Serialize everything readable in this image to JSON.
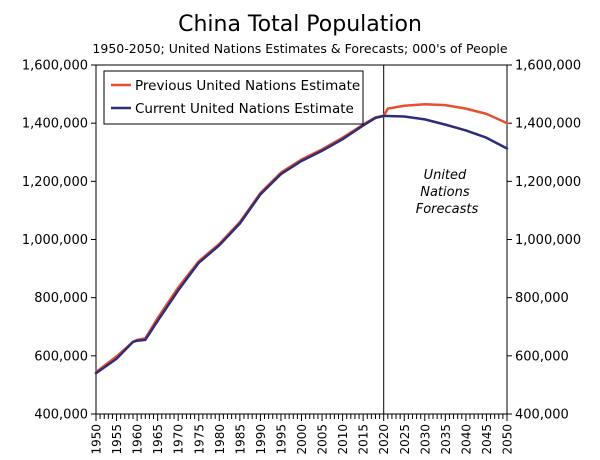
{
  "chart_data": {
    "type": "line",
    "title": "China Total Population",
    "subtitle": "1950-2050; United Nations Estimates & Forecasts; 000's of People",
    "xlabel": "",
    "ylabel": "",
    "xlim": [
      1950,
      2050
    ],
    "ylim": [
      400000,
      1600000
    ],
    "y_ticks": [
      400000,
      600000,
      800000,
      1000000,
      1200000,
      1400000,
      1600000
    ],
    "y_tick_labels": [
      "400,000",
      "600,000",
      "800,000",
      "1,000,000",
      "1,200,000",
      "1,400,000",
      "1,600,000"
    ],
    "x_tick_labels": [
      "1950",
      "1955",
      "1960",
      "1965",
      "1970",
      "1975",
      "1980",
      "1985",
      "1990",
      "1995",
      "2000",
      "2005",
      "2010",
      "2015",
      "2020",
      "2025",
      "2030",
      "2035",
      "2040",
      "2045",
      "2050"
    ],
    "x_ticks": [
      1950,
      1955,
      1960,
      1965,
      1970,
      1975,
      1980,
      1985,
      1990,
      1995,
      2000,
      2005,
      2010,
      2015,
      2020,
      2025,
      2030,
      2035,
      2040,
      2045,
      2050
    ],
    "grid": false,
    "legend_position": "top-left",
    "divider_year": 2020,
    "annotation": "United Nations Forecasts",
    "annotation_lines": [
      "United",
      "Nations",
      "Forecasts"
    ],
    "series": [
      {
        "name": "Previous United Nations Estimate",
        "color": "#e8502d",
        "x": [
          1950,
          1955,
          1959,
          1960,
          1962,
          1965,
          1970,
          1975,
          1980,
          1985,
          1990,
          1995,
          2000,
          2005,
          2010,
          2015,
          2018,
          2020,
          2021,
          2025,
          2030,
          2035,
          2040,
          2045,
          2050
        ],
        "values": [
          544000,
          598000,
          648000,
          655000,
          660000,
          730000,
          835000,
          925000,
          985000,
          1060000,
          1160000,
          1230000,
          1275000,
          1310000,
          1350000,
          1395000,
          1420000,
          1425000,
          1450000,
          1460000,
          1465000,
          1462000,
          1450000,
          1432000,
          1400000
        ]
      },
      {
        "name": "Current United Nations Estimate",
        "color": "#2e2d7a",
        "x": [
          1950,
          1955,
          1959,
          1960,
          1962,
          1965,
          1970,
          1975,
          1980,
          1985,
          1990,
          1995,
          2000,
          2005,
          2010,
          2015,
          2018,
          2020,
          2025,
          2030,
          2035,
          2040,
          2045,
          2050
        ],
        "values": [
          540000,
          590000,
          648000,
          652000,
          655000,
          720000,
          825000,
          920000,
          980000,
          1055000,
          1155000,
          1225000,
          1270000,
          1305000,
          1345000,
          1392000,
          1418000,
          1425000,
          1423000,
          1413000,
          1395000,
          1375000,
          1350000,
          1313000
        ]
      }
    ]
  }
}
